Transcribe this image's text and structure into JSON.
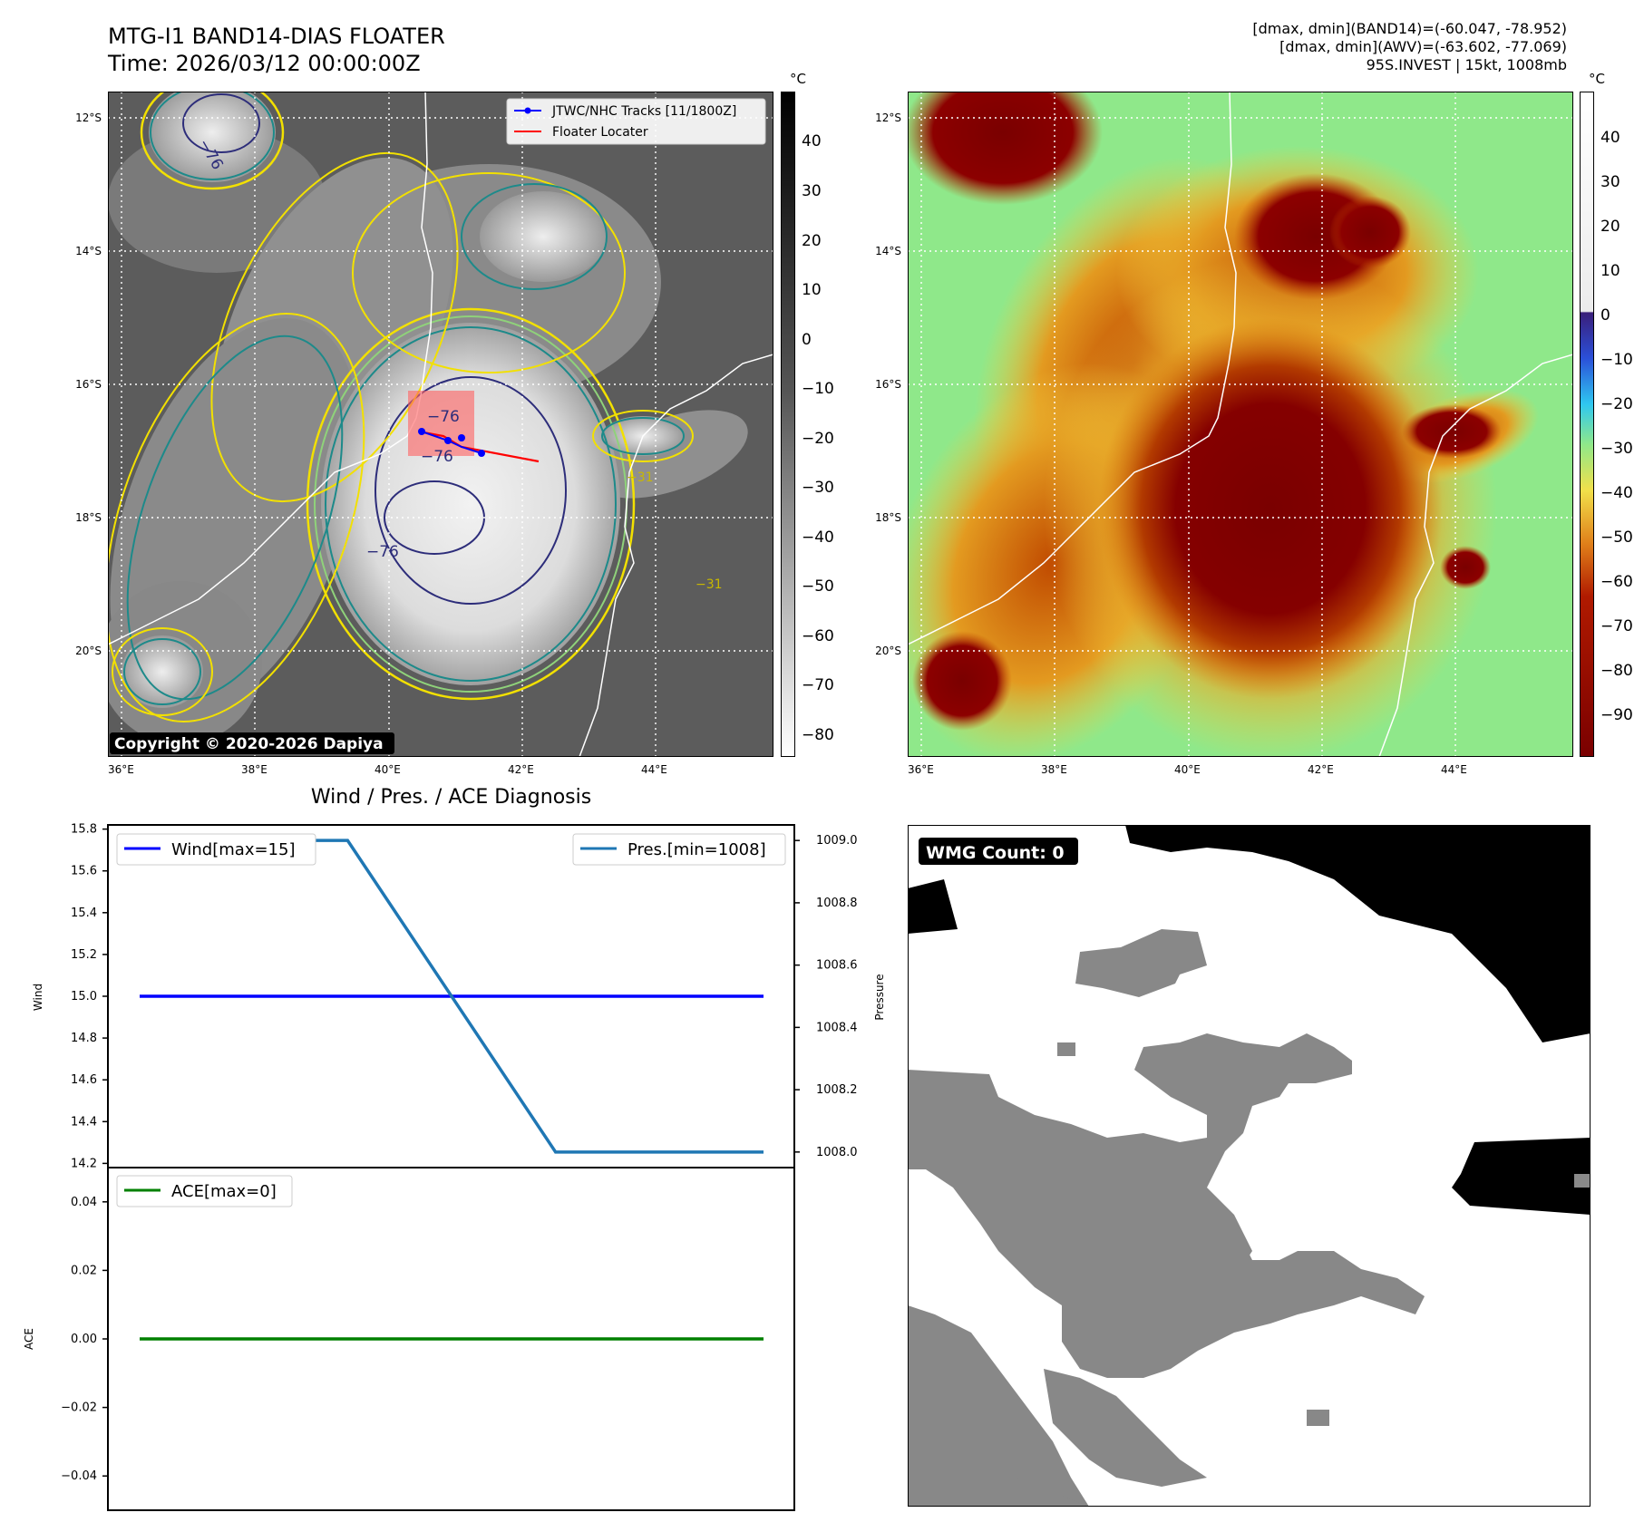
{
  "header": {
    "title_line1": "MTG-I1 BAND14-DIAS FLOATER",
    "title_line2": "Time: 2026/03/12 00:00:00Z",
    "info_line1": "[dmax, dmin](BAND14)=(-60.047, -78.952)",
    "info_line2": "[dmax, dmin](AWV)=(-63.602, -77.069)",
    "info_line3": "95S.INVEST | 15kt, 1008mb"
  },
  "map_axes": {
    "lat_ticks": [
      "12°S",
      "14°S",
      "16°S",
      "18°S",
      "20°S"
    ],
    "lon_ticks": [
      "36°E",
      "38°E",
      "40°E",
      "42°E",
      "44°E"
    ],
    "unit": "°C"
  },
  "ir_panel": {
    "colorbar_ticks": [
      "40",
      "30",
      "20",
      "10",
      "0",
      "−10",
      "−20",
      "−30",
      "−40",
      "−50",
      "−60",
      "−70",
      "−80"
    ],
    "legend": [
      {
        "label": "JTWC/NHC Tracks [11/1800Z]",
        "color": "#0000ff"
      },
      {
        "label": "Floater Locater",
        "color": "#ff0000"
      }
    ],
    "contour_labels": [
      "−76",
      "−76",
      "−76",
      "−76",
      "−31",
      "−31"
    ],
    "copyright": "Copyright © 2020-2026 Dapiya"
  },
  "wv_panel": {
    "colorbar_ticks": [
      "40",
      "30",
      "20",
      "10",
      "0",
      "−10",
      "−20",
      "−30",
      "−40",
      "−50",
      "−60",
      "−70",
      "−80",
      "−90"
    ]
  },
  "diag": {
    "title": "Wind / Pres. / ACE Diagnosis",
    "wind_ylabel": "Wind",
    "pres_ylabel": "Pressure",
    "ace_ylabel": "ACE",
    "wind_ticks": [
      "15.8",
      "15.6",
      "15.4",
      "15.2",
      "15.0",
      "14.8",
      "14.6",
      "14.4",
      "14.2"
    ],
    "pres_ticks": [
      "1009.0",
      "1008.8",
      "1008.6",
      "1008.4",
      "1008.2",
      "1008.0"
    ],
    "ace_ticks": [
      "0.04",
      "0.02",
      "0.00",
      "−0.02",
      "−0.04"
    ],
    "legend_wind": "Wind[max=15]",
    "legend_pres": "Pres.[min=1008]",
    "legend_ace": "ACE[max=0]"
  },
  "wmg": {
    "label": "WMG Count: 0"
  },
  "chart_data": [
    {
      "type": "line",
      "title": "Wind / Pres. / ACE Diagnosis",
      "x": [
        0,
        1,
        2,
        3
      ],
      "series": [
        {
          "name": "Wind[max=15]",
          "axis": "left",
          "color": "#0000ff",
          "values": [
            15,
            15,
            15,
            15
          ]
        },
        {
          "name": "Pres.[min=1008]",
          "axis": "right",
          "color": "#1f77b4",
          "values": [
            1009,
            1009,
            1008,
            1008
          ]
        }
      ],
      "ylim_left": [
        14.2,
        15.8
      ],
      "ylim_right": [
        1008.0,
        1009.0
      ],
      "xlabel": "",
      "ylabel": "Wind",
      "ylabel_right": "Pressure",
      "legend": [
        "top-left",
        "top-right"
      ]
    },
    {
      "type": "line",
      "x": [
        0,
        1,
        2,
        3
      ],
      "series": [
        {
          "name": "ACE[max=0]",
          "color": "#008000",
          "values": [
            0,
            0,
            0,
            0
          ]
        }
      ],
      "ylim": [
        -0.05,
        0.05
      ],
      "ylabel": "ACE",
      "legend": "top-left"
    }
  ]
}
